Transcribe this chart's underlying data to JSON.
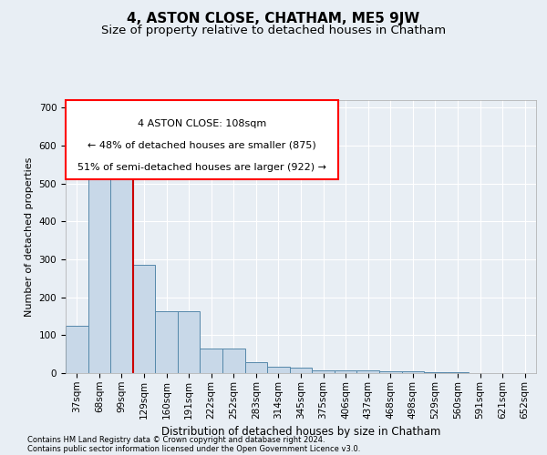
{
  "title": "4, ASTON CLOSE, CHATHAM, ME5 9JW",
  "subtitle": "Size of property relative to detached houses in Chatham",
  "xlabel": "Distribution of detached houses by size in Chatham",
  "ylabel": "Number of detached properties",
  "footer_line1": "Contains HM Land Registry data © Crown copyright and database right 2024.",
  "footer_line2": "Contains public sector information licensed under the Open Government Licence v3.0.",
  "annotation_line1": "4 ASTON CLOSE: 108sqm",
  "annotation_line2": "← 48% of detached houses are smaller (875)",
  "annotation_line3": "51% of semi-detached houses are larger (922) →",
  "bar_categories": [
    "37sqm",
    "68sqm",
    "99sqm",
    "129sqm",
    "160sqm",
    "191sqm",
    "222sqm",
    "252sqm",
    "283sqm",
    "314sqm",
    "345sqm",
    "375sqm",
    "406sqm",
    "437sqm",
    "468sqm",
    "498sqm",
    "529sqm",
    "560sqm",
    "591sqm",
    "621sqm",
    "652sqm"
  ],
  "bar_values": [
    125,
    560,
    555,
    285,
    163,
    163,
    65,
    65,
    30,
    18,
    15,
    8,
    8,
    8,
    5,
    5,
    3,
    2,
    1,
    1,
    1
  ],
  "bar_color": "#c8d8e8",
  "bar_edge_color": "#5588aa",
  "red_line_x": 2.5,
  "red_line_color": "#cc0000",
  "ylim": [
    0,
    720
  ],
  "yticks": [
    0,
    100,
    200,
    300,
    400,
    500,
    600,
    700
  ],
  "bg_color": "#e8eef4",
  "plot_bg_color": "#e8eef4",
  "grid_color": "#ffffff",
  "title_fontsize": 11,
  "subtitle_fontsize": 9.5,
  "ylabel_fontsize": 8,
  "xlabel_fontsize": 8.5,
  "tick_fontsize": 7.5,
  "annotation_fontsize": 8,
  "footer_fontsize": 6
}
